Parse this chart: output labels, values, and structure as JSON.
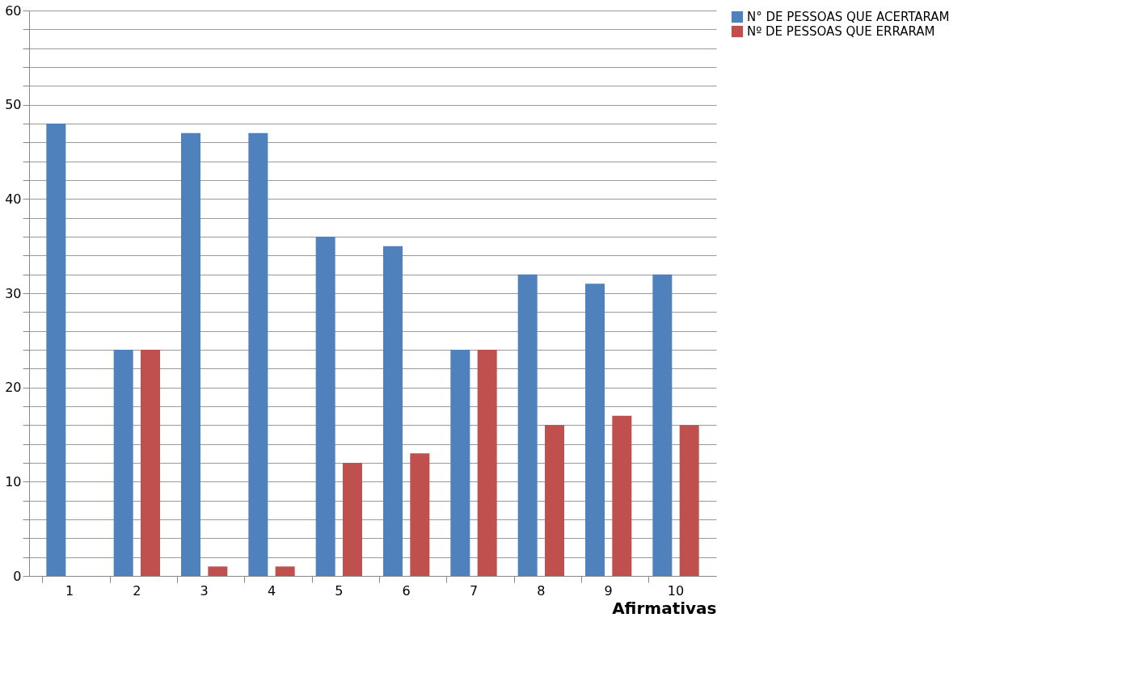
{
  "chart_data": {
    "type": "bar",
    "xlabel": "Afirmativas",
    "categories": [
      "1",
      "2",
      "3",
      "4",
      "5",
      "6",
      "7",
      "8",
      "9",
      "10"
    ],
    "series": [
      {
        "name": "N° DE PESSOAS QUE ACERTARAM",
        "color": "#4f81bd",
        "values": [
          48,
          24,
          47,
          47,
          36,
          35,
          24,
          32,
          31,
          32
        ]
      },
      {
        "name": "Nº DE PESSOAS QUE ERRARAM",
        "color": "#c0504d",
        "values": [
          0,
          24,
          1,
          1,
          12,
          13,
          24,
          16,
          17,
          16
        ]
      }
    ],
    "ylim": [
      0,
      60
    ],
    "yticks": [
      0,
      {
        "value": 2,
        "label": null
      },
      {
        "value": 4,
        "label": null
      },
      {
        "value": 6,
        "label": null
      },
      {
        "value": 8,
        "label": null
      },
      10,
      {
        "value": 12,
        "label": null
      },
      {
        "value": 14,
        "label": null
      },
      {
        "value": 16,
        "label": null
      },
      {
        "value": 18,
        "label": null
      },
      20,
      {
        "value": 22,
        "label": null
      },
      {
        "value": 24,
        "label": null
      },
      {
        "value": 26,
        "label": null
      },
      {
        "value": 28,
        "label": null
      },
      30,
      {
        "value": 32,
        "label": null
      },
      {
        "value": 34,
        "label": null
      },
      {
        "value": 36,
        "label": null
      },
      {
        "value": 38,
        "label": null
      },
      40,
      {
        "value": 42,
        "label": null
      },
      {
        "value": 44,
        "label": null
      },
      {
        "value": 46,
        "label": null
      },
      {
        "value": 48,
        "label": null
      },
      50,
      {
        "value": 52,
        "label": null
      },
      {
        "value": 54,
        "label": null
      },
      {
        "value": 56,
        "label": null
      },
      {
        "value": 58,
        "label": null
      },
      60
    ],
    "grid": "y",
    "legend": "right"
  }
}
